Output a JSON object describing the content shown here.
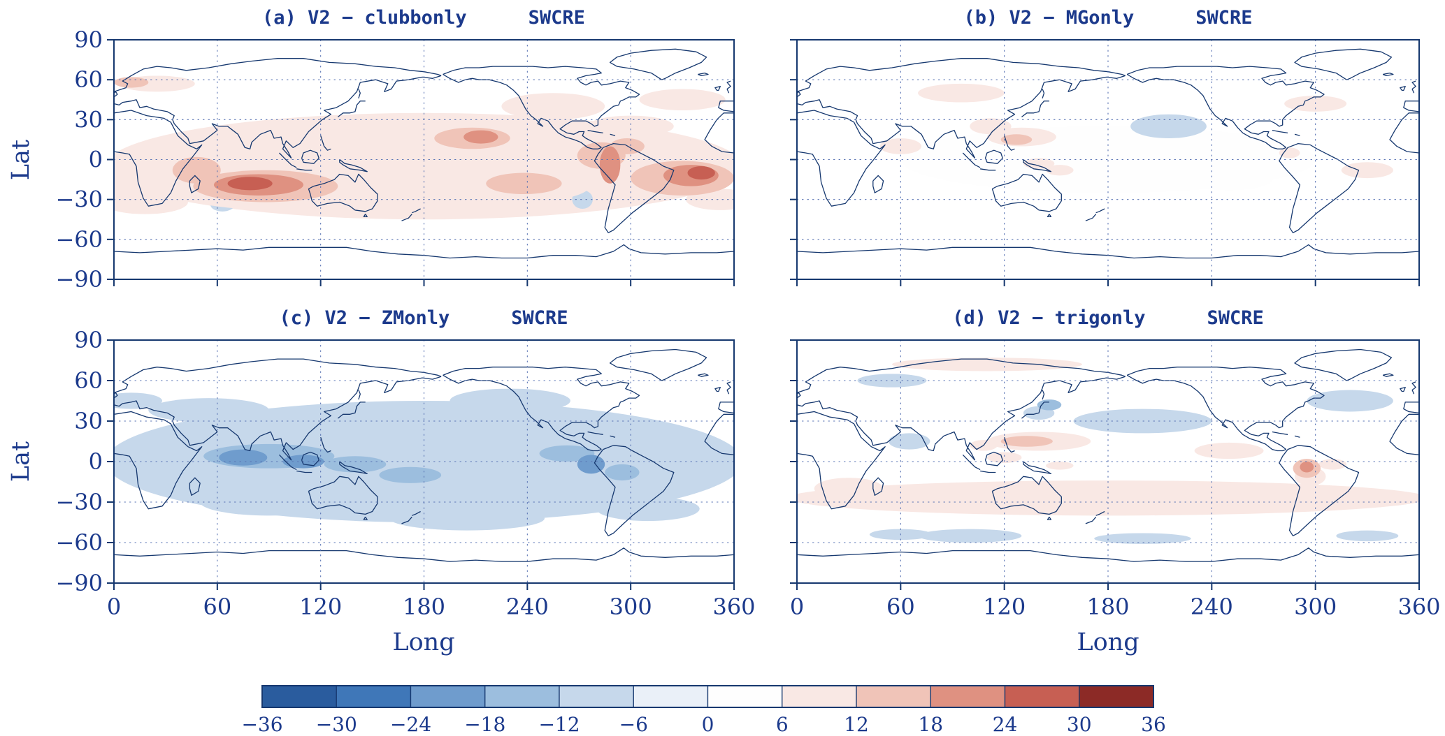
{
  "figure": {
    "background": "#ffffff",
    "text_color": "#1c3a8c",
    "coast_color": "#16386f",
    "grid_color": "#5a74b4"
  },
  "axes": {
    "xlabel": "Long",
    "ylabel": "Lat",
    "xlim": [
      0,
      360
    ],
    "ylim": [
      -90,
      90
    ],
    "xticks": [
      0,
      60,
      120,
      180,
      240,
      300,
      360
    ],
    "xtick_labels": [
      "0",
      "60",
      "120",
      "180",
      "240",
      "300",
      "360"
    ],
    "yticks": [
      90,
      60,
      30,
      0,
      -30,
      -60,
      -90
    ],
    "ytick_labels": [
      "90",
      "60",
      "30",
      "0",
      "−30",
      "−60",
      "−90"
    ]
  },
  "colorbar": {
    "levels": [
      -36,
      -30,
      -24,
      -18,
      -12,
      -6,
      0,
      6,
      12,
      18,
      24,
      30,
      36
    ],
    "tick_labels": [
      "−36",
      "−30",
      "−24",
      "−18",
      "−12",
      "−6",
      "0",
      "6",
      "12",
      "18",
      "24",
      "30",
      "36"
    ],
    "colors": [
      "#2a5c9e",
      "#3f77b8",
      "#6f9ccd",
      "#9cbede",
      "#c6d8eb",
      "#eaf0f8",
      "#fefefe",
      "#f9e8e4",
      "#f0c4b8",
      "#df9181",
      "#c75f53",
      "#8c2a26"
    ]
  },
  "chart_data": [
    {
      "type": "heatmap",
      "panel": "a",
      "title": "(a) V2 − clubbonly",
      "subtitle": "SWCRE",
      "xlim": [
        0,
        360
      ],
      "ylim": [
        -90,
        90
      ],
      "anomaly_format": [
        "lon_center_deg",
        "lat_center_deg",
        "rx_deg",
        "ry_deg",
        "value"
      ],
      "anomalies": [
        [
          180,
          -5,
          185,
          40,
          7
        ],
        [
          95,
          -22,
          62,
          16,
          9
        ],
        [
          88,
          -20,
          42,
          12,
          14
        ],
        [
          84,
          -19,
          26,
          8,
          20
        ],
        [
          79,
          -18,
          13,
          5,
          27
        ],
        [
          57,
          3,
          16,
          12,
          9
        ],
        [
          48,
          -8,
          14,
          10,
          13
        ],
        [
          25,
          57,
          22,
          6,
          8
        ],
        [
          10,
          58,
          10,
          4,
          13
        ],
        [
          205,
          14,
          40,
          13,
          9
        ],
        [
          208,
          16,
          22,
          8,
          15
        ],
        [
          213,
          17,
          10,
          5,
          21
        ],
        [
          170,
          10,
          25,
          8,
          8
        ],
        [
          228,
          -20,
          48,
          13,
          9
        ],
        [
          238,
          -18,
          22,
          8,
          14
        ],
        [
          258,
          -6,
          25,
          15,
          8
        ],
        [
          283,
          3,
          14,
          10,
          16
        ],
        [
          288,
          -4,
          6,
          14,
          23
        ],
        [
          298,
          10,
          10,
          6,
          13
        ],
        [
          330,
          -14,
          30,
          13,
          13
        ],
        [
          335,
          -12,
          16,
          8,
          19
        ],
        [
          341,
          -10,
          8,
          5,
          25
        ],
        [
          315,
          -2,
          18,
          8,
          10
        ],
        [
          352,
          -30,
          20,
          8,
          9
        ],
        [
          18,
          -32,
          25,
          9,
          9
        ],
        [
          5,
          -20,
          15,
          10,
          8
        ],
        [
          120,
          20,
          30,
          10,
          7
        ],
        [
          150,
          -35,
          25,
          8,
          7
        ],
        [
          255,
          40,
          30,
          10,
          7
        ],
        [
          330,
          45,
          25,
          8,
          7
        ],
        [
          300,
          25,
          25,
          8,
          7
        ],
        [
          63,
          -34,
          7,
          5,
          -8
        ],
        [
          272,
          -30,
          6,
          7,
          -8
        ]
      ]
    },
    {
      "type": "heatmap",
      "panel": "b",
      "title": "(b) V2 − MGonly",
      "subtitle": "SWCRE",
      "xlim": [
        0,
        360
      ],
      "ylim": [
        -90,
        90
      ],
      "anomaly_format": [
        "lon_center_deg",
        "lat_center_deg",
        "rx_deg",
        "ry_deg",
        "value"
      ],
      "anomalies": [
        [
          180,
          0,
          120,
          25,
          2
        ],
        [
          130,
          17,
          20,
          7,
          8
        ],
        [
          127,
          15,
          9,
          4,
          13
        ],
        [
          112,
          25,
          12,
          6,
          7
        ],
        [
          140,
          -3,
          9,
          4,
          8
        ],
        [
          152,
          -8,
          8,
          4,
          7
        ],
        [
          95,
          50,
          25,
          7,
          7
        ],
        [
          300,
          42,
          18,
          6,
          7
        ],
        [
          215,
          25,
          22,
          9,
          -7
        ],
        [
          330,
          -8,
          15,
          6,
          7
        ],
        [
          285,
          5,
          6,
          4,
          8
        ],
        [
          60,
          10,
          12,
          6,
          7
        ],
        [
          250,
          -15,
          25,
          8,
          2
        ]
      ]
    },
    {
      "type": "heatmap",
      "panel": "c",
      "title": "(c) V2 − ZMonly",
      "subtitle": "SWCRE",
      "xlim": [
        0,
        360
      ],
      "ylim": [
        -90,
        90
      ],
      "anomaly_format": [
        "lon_center_deg",
        "lat_center_deg",
        "rx_deg",
        "ry_deg",
        "value"
      ],
      "anomalies": [
        [
          180,
          0,
          185,
          45,
          -7
        ],
        [
          100,
          2,
          65,
          14,
          -9
        ],
        [
          90,
          4,
          38,
          9,
          -14
        ],
        [
          75,
          3,
          14,
          6,
          -20
        ],
        [
          110,
          0,
          12,
          5,
          -19
        ],
        [
          140,
          -2,
          18,
          6,
          -16
        ],
        [
          152,
          6,
          28,
          10,
          -10
        ],
        [
          182,
          -12,
          38,
          9,
          -8
        ],
        [
          172,
          -10,
          18,
          6,
          -13
        ],
        [
          255,
          7,
          32,
          9,
          -10
        ],
        [
          263,
          6,
          16,
          6,
          -16
        ],
        [
          277,
          -2,
          8,
          7,
          -20
        ],
        [
          295,
          -8,
          10,
          6,
          -13
        ],
        [
          335,
          0,
          16,
          7,
          -8
        ],
        [
          20,
          0,
          18,
          10,
          -8
        ],
        [
          55,
          38,
          35,
          9,
          -7
        ],
        [
          120,
          30,
          25,
          8,
          -7
        ],
        [
          230,
          45,
          35,
          9,
          -7
        ],
        [
          205,
          -42,
          45,
          9,
          -7
        ],
        [
          90,
          -30,
          40,
          10,
          -7
        ],
        [
          310,
          -35,
          30,
          9,
          -7
        ],
        [
          230,
          -20,
          30,
          8,
          -7
        ],
        [
          10,
          45,
          18,
          6,
          -7
        ]
      ]
    },
    {
      "type": "heatmap",
      "panel": "d",
      "title": "(d) V2 − trigonly",
      "subtitle": "SWCRE",
      "xlim": [
        0,
        360
      ],
      "ylim": [
        -90,
        90
      ],
      "anomaly_format": [
        "lon_center_deg",
        "lat_center_deg",
        "rx_deg",
        "ry_deg",
        "value"
      ],
      "anomalies": [
        [
          180,
          -27,
          185,
          13,
          7
        ],
        [
          110,
          72,
          55,
          5,
          7
        ],
        [
          140,
          15,
          30,
          7,
          9
        ],
        [
          133,
          15,
          15,
          4,
          14
        ],
        [
          120,
          3,
          10,
          4,
          8
        ],
        [
          108,
          12,
          8,
          4,
          7
        ],
        [
          152,
          -3,
          8,
          3,
          7
        ],
        [
          295,
          -5,
          8,
          7,
          13
        ],
        [
          295,
          -4,
          4,
          4,
          19
        ],
        [
          297,
          -11,
          9,
          7,
          8
        ],
        [
          310,
          -2,
          8,
          4,
          7
        ],
        [
          140,
          36,
          9,
          5,
          -10
        ],
        [
          146,
          42,
          7,
          4,
          -15
        ],
        [
          200,
          30,
          40,
          9,
          -7
        ],
        [
          320,
          45,
          25,
          8,
          -7
        ],
        [
          100,
          -55,
          30,
          5,
          -8
        ],
        [
          60,
          -54,
          18,
          4,
          -7
        ],
        [
          200,
          -57,
          28,
          4,
          -7
        ],
        [
          330,
          -55,
          18,
          4,
          -7
        ],
        [
          30,
          -20,
          20,
          8,
          7
        ],
        [
          65,
          15,
          12,
          6,
          -7
        ],
        [
          250,
          8,
          20,
          6,
          7
        ],
        [
          55,
          60,
          20,
          5,
          -7
        ]
      ]
    }
  ]
}
